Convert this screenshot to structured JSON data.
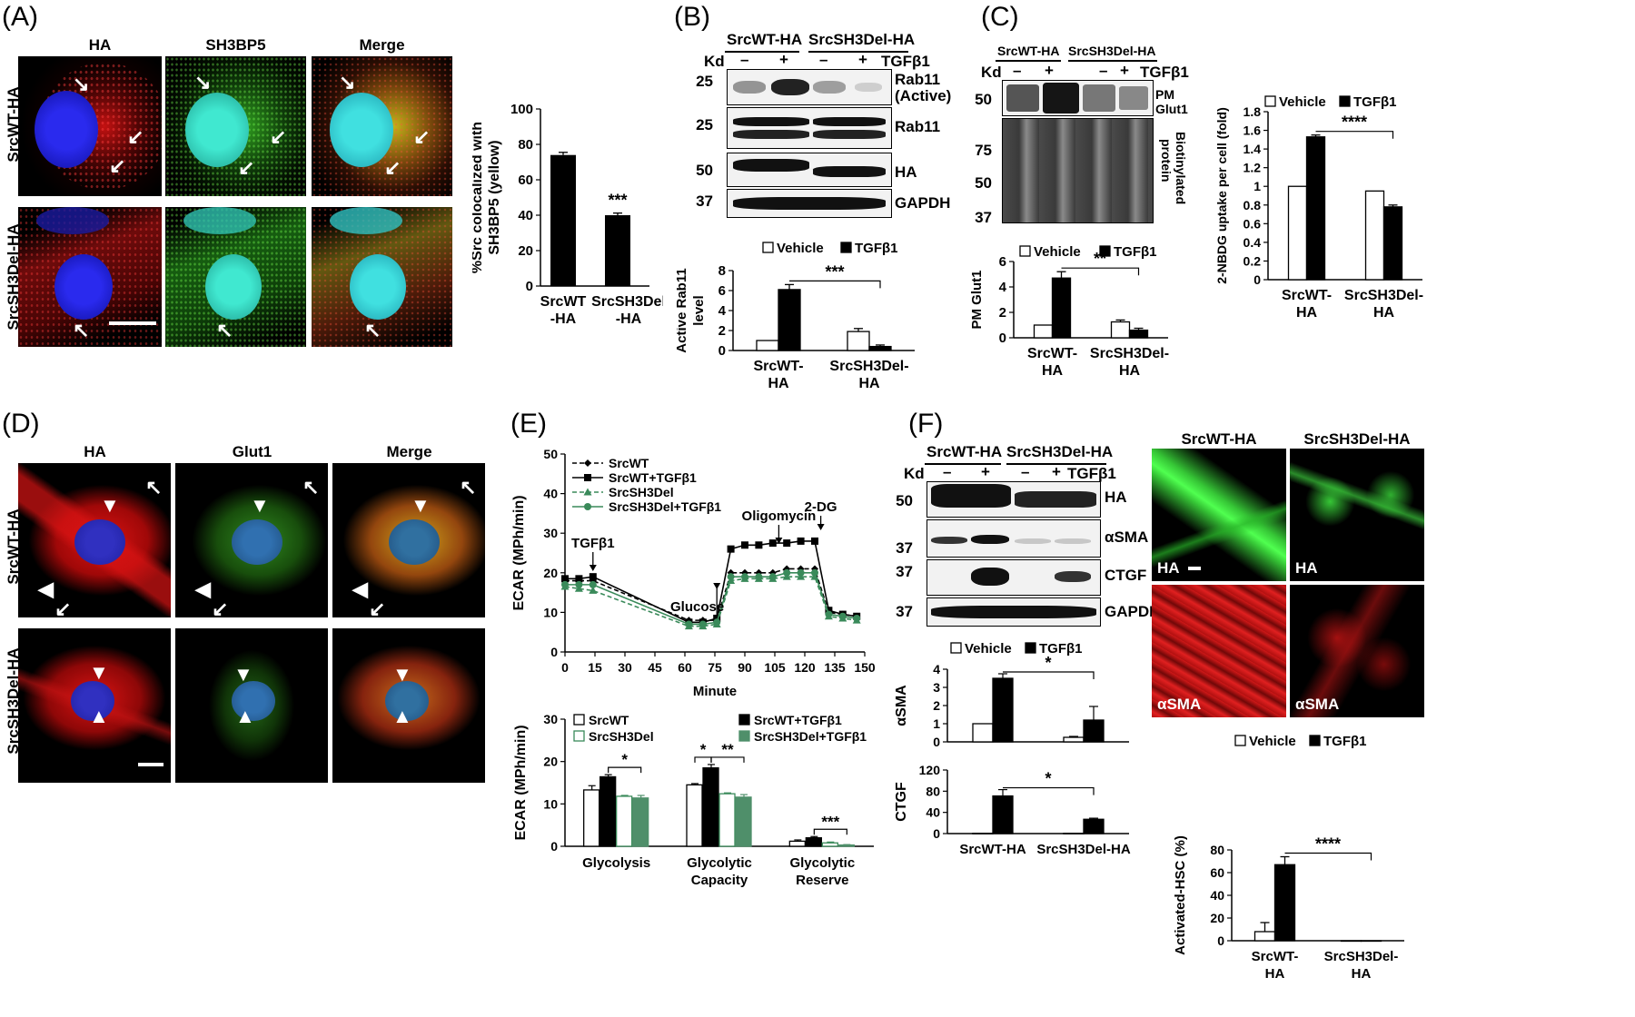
{
  "panels": {
    "A": {
      "label": "(A)",
      "col_headers": [
        "HA",
        "SH3BP5",
        "Merge"
      ],
      "row_labels": [
        "SrcWT-HA",
        "SrcSH3Del-HA"
      ]
    },
    "B": {
      "label": "(B)",
      "groups": [
        "SrcWT-HA",
        "SrcSH3Del-HA"
      ],
      "kd": "Kd",
      "signs": [
        "–",
        "+",
        "–",
        "+"
      ],
      "treatment": "TGFβ1",
      "blots": [
        {
          "name": "Rab11 (Active)",
          "name_line1": "Rab11",
          "name_line2": "(Active)",
          "kd": "25"
        },
        {
          "name": "Rab11",
          "kd": "25"
        },
        {
          "name": "HA",
          "kd": "50"
        },
        {
          "name": "GAPDH",
          "kd": "37"
        }
      ]
    },
    "C": {
      "label": "(C)",
      "groups": [
        "SrcWT-HA",
        "SrcSH3Del-HA"
      ],
      "kd": "Kd",
      "signs": [
        "–",
        "+",
        "–",
        "+"
      ],
      "treatment": "TGFβ1",
      "blot1_label_line1": "PM",
      "blot1_label_line2": "Glut1",
      "blot1_kd": "50",
      "blot2_kds": [
        "75",
        "50",
        "37"
      ],
      "blot2_label_line1": "Biotinylated",
      "blot2_label_line2": "protein"
    },
    "D": {
      "label": "(D)",
      "col_headers": [
        "HA",
        "Glut1",
        "Merge"
      ],
      "row_labels": [
        "SrcWT-HA",
        "SrcSH3Del-HA"
      ]
    },
    "E": {
      "label": "(E)"
    },
    "F": {
      "label": "(F)",
      "groups": [
        "SrcWT-HA",
        "SrcSH3Del-HA"
      ],
      "kd": "Kd",
      "signs": [
        "–",
        "+",
        "–",
        "+"
      ],
      "treatment": "TGFβ1",
      "blots": [
        {
          "name": "HA",
          "kd": "50"
        },
        {
          "name": "αSMA",
          "kd": "37"
        },
        {
          "name": "CTGF",
          "kd": "37"
        },
        {
          "name": "GAPDH",
          "kd": "37"
        }
      ],
      "img_headers": [
        "SrcWT-HA",
        "SrcSH3Del-HA"
      ],
      "img_tags": [
        "HA",
        "HA",
        "αSMA",
        "αSMA"
      ]
    }
  },
  "chart_data": [
    {
      "id": "A-bar",
      "type": "bar",
      "categories": [
        "SrcWT-HA",
        "SrcSH3Del-HA"
      ],
      "category_lines": [
        [
          "SrcWT",
          "-HA"
        ],
        [
          "SrcSH3Del",
          "-HA"
        ]
      ],
      "values": [
        74,
        40
      ],
      "errors": [
        1.5,
        1.2
      ],
      "ylabel_lines": [
        "%Src colocalized with",
        "SH3BP5 (yellow)"
      ],
      "ylim": [
        0,
        100
      ],
      "yticks": [
        0,
        20,
        40,
        60,
        80,
        100
      ],
      "annotations": [
        {
          "text": "***",
          "category": 1
        }
      ],
      "colors": [
        "#000000"
      ]
    },
    {
      "id": "B-bar",
      "type": "bar",
      "categories": [
        "SrcWT-HA",
        "SrcSH3Del-HA"
      ],
      "category_lines": [
        [
          "SrcWT-",
          "HA"
        ],
        [
          "SrcSH3Del-",
          "HA"
        ]
      ],
      "series": [
        {
          "name": "Vehicle",
          "values": [
            1.0,
            1.9
          ],
          "errors": [
            0,
            0.3
          ],
          "fill": "#ffffff"
        },
        {
          "name": "TGFβ1",
          "values": [
            6.1,
            0.4
          ],
          "errors": [
            0.5,
            0.15
          ],
          "fill": "#000000"
        }
      ],
      "ylabel_lines": [
        "Active Rab11",
        "level"
      ],
      "ylim": [
        0,
        8
      ],
      "yticks": [
        0,
        2,
        4,
        6,
        8
      ],
      "significance": [
        {
          "text": "***",
          "from_category": 0,
          "to_category": 1
        }
      ]
    },
    {
      "id": "C-bar",
      "type": "bar",
      "categories": [
        "SrcWT-HA",
        "SrcSH3Del-HA"
      ],
      "category_lines": [
        [
          "SrcWT-",
          "HA"
        ],
        [
          "SrcSH3Del-",
          "HA"
        ]
      ],
      "series": [
        {
          "name": "Vehicle",
          "values": [
            1.0,
            1.25
          ],
          "errors": [
            0,
            0.15
          ],
          "fill": "#ffffff"
        },
        {
          "name": "TGFβ1",
          "values": [
            4.7,
            0.6
          ],
          "errors": [
            0.5,
            0.15
          ],
          "fill": "#000000"
        }
      ],
      "ylabel_lines": [
        "PM Glut1"
      ],
      "ylim": [
        0,
        6
      ],
      "yticks": [
        0,
        2,
        4,
        6
      ],
      "significance": [
        {
          "text": "**",
          "from_category": 0,
          "to_category": 1
        }
      ]
    },
    {
      "id": "C2-bar",
      "type": "bar",
      "categories": [
        "SrcWT-HA",
        "SrcSH3Del-HA"
      ],
      "category_lines": [
        [
          "SrcWT-",
          "HA"
        ],
        [
          "SrcSH3Del-",
          "HA"
        ]
      ],
      "series": [
        {
          "name": "Vehicle",
          "values": [
            1.0,
            0.95
          ],
          "errors": [
            0,
            0
          ],
          "fill": "#ffffff"
        },
        {
          "name": "TGFβ1",
          "values": [
            1.53,
            0.78
          ],
          "errors": [
            0.02,
            0.02
          ],
          "fill": "#000000"
        }
      ],
      "ylabel_lines": [
        "2-NBDG uptake per cell (fold)"
      ],
      "ylim": [
        0,
        1.8
      ],
      "yticks": [
        0,
        0.2,
        0.4,
        0.6,
        0.8,
        1.0,
        1.2,
        1.4,
        1.6,
        1.8
      ],
      "ytick_labels": [
        "0",
        "0.2",
        "0.4",
        "0.6",
        "0.8",
        "1",
        "1.2",
        "1.4",
        "1.6",
        "1.8"
      ],
      "significance": [
        {
          "text": "****",
          "from_category": 0,
          "to_category": 1
        }
      ]
    },
    {
      "id": "E-line",
      "type": "line",
      "xlabel": "Minute",
      "ylabel": "ECAR (MPh/min)",
      "xlim": [
        0,
        150
      ],
      "ylim": [
        0,
        50
      ],
      "xticks": [
        0,
        15,
        30,
        45,
        60,
        75,
        90,
        105,
        120,
        135,
        150
      ],
      "yticks": [
        0,
        10,
        20,
        30,
        40,
        50
      ],
      "x": [
        0,
        7,
        14,
        62,
        69,
        76,
        83,
        90,
        97,
        104,
        111,
        118,
        125,
        132,
        139,
        146
      ],
      "series": [
        {
          "name": "SrcWT",
          "values": [
            18,
            18,
            18,
            8,
            8,
            8,
            20,
            20,
            20,
            20,
            21,
            21,
            21,
            10,
            9.5,
            9
          ],
          "color": "#000000",
          "dash": "5,3",
          "marker": "diamond"
        },
        {
          "name": "SrcWT+TGFβ1",
          "values": [
            18.5,
            18.5,
            19,
            7.5,
            7.5,
            8.5,
            26,
            27,
            27,
            27.5,
            27.5,
            28,
            28,
            10.5,
            9.5,
            9
          ],
          "color": "#000000",
          "dash": "",
          "marker": "square"
        },
        {
          "name": "SrcSH3Del",
          "values": [
            16.5,
            16,
            15.5,
            6.5,
            6.5,
            7,
            18,
            18.5,
            18.5,
            18.5,
            19,
            19,
            19,
            9,
            8.5,
            8
          ],
          "color": "#3a8a5a",
          "dash": "5,3",
          "marker": "triangle"
        },
        {
          "name": "SrcSH3Del+TGFβ1",
          "values": [
            17,
            17,
            17,
            7,
            7,
            7.5,
            19,
            19,
            19,
            19,
            20,
            20,
            20,
            9.5,
            9,
            8.5
          ],
          "color": "#3a8a5a",
          "dash": "",
          "marker": "circle"
        }
      ],
      "annotations": [
        {
          "text": "TGFβ1",
          "x": 14
        },
        {
          "text": "Glucose",
          "x": 76
        },
        {
          "text": "Oligomycin",
          "x": 107
        },
        {
          "text": "2-DG",
          "x": 128
        }
      ]
    },
    {
      "id": "E-bar",
      "type": "bar",
      "categories": [
        "Glycolysis",
        "Glycolytic Capacity",
        "Glycolytic Reserve"
      ],
      "category_lines": [
        [
          "Glycolysis"
        ],
        [
          "Glycolytic",
          "Capacity"
        ],
        [
          "Glycolytic",
          "Reserve"
        ]
      ],
      "series": [
        {
          "name": "SrcWT",
          "values": [
            13.3,
            14.5,
            1.2
          ],
          "errors": [
            1.0,
            0.3,
            0.3
          ],
          "fill": "#ffffff",
          "stroke": "#000000"
        },
        {
          "name": "SrcWT+TGFβ1",
          "values": [
            16.4,
            18.5,
            2.0
          ],
          "errors": [
            0.5,
            0.8,
            0.3
          ],
          "fill": "#000000",
          "stroke": "#000000"
        },
        {
          "name": "SrcSH3Del",
          "values": [
            11.8,
            12.4,
            0.8
          ],
          "errors": [
            0.2,
            0.2,
            0.2
          ],
          "fill": "#ffffff",
          "stroke": "#3a8a5a"
        },
        {
          "name": "SrcSH3Del+TGFβ1",
          "values": [
            11.4,
            11.6,
            0.3
          ],
          "errors": [
            0.6,
            0.6,
            0.1
          ],
          "fill": "#4f8f6a",
          "stroke": "#4f8f6a"
        }
      ],
      "ylabel": "ECAR (MPh/min)",
      "ylim": [
        0,
        30
      ],
      "yticks": [
        0,
        10,
        20,
        30
      ],
      "significance": [
        {
          "text": "*",
          "category": 0,
          "from_series": 1,
          "to_series": 3
        },
        {
          "text": "*",
          "category": 1,
          "from_series": 0,
          "to_series": 1
        },
        {
          "text": "**",
          "category": 1,
          "from_series": 1,
          "to_series": 3
        },
        {
          "text": "***",
          "category": 2,
          "from_series": 1,
          "to_series": 3
        }
      ]
    },
    {
      "id": "F-asma",
      "type": "bar",
      "categories": [
        "SrcWT-HA",
        "SrcSH3Del-HA"
      ],
      "series": [
        {
          "name": "Vehicle",
          "values": [
            1.0,
            0.25
          ],
          "errors": [
            0,
            0.05
          ],
          "fill": "#ffffff"
        },
        {
          "name": "TGFβ1",
          "values": [
            3.5,
            1.2
          ],
          "errors": [
            0.25,
            0.75
          ],
          "fill": "#000000"
        }
      ],
      "ylabel": "αSMA",
      "ylim": [
        0,
        4
      ],
      "yticks": [
        0,
        1,
        2,
        3,
        4
      ],
      "significance": [
        {
          "text": "*",
          "from_category": 0,
          "to_category": 1
        }
      ]
    },
    {
      "id": "F-ctgf",
      "type": "bar",
      "categories": [
        "SrcWT-HA",
        "SrcSH3Del-HA"
      ],
      "series": [
        {
          "name": "Vehicle",
          "values": [
            0.5,
            0.5
          ],
          "errors": [
            0,
            0
          ],
          "fill": "#ffffff"
        },
        {
          "name": "TGFβ1",
          "values": [
            71,
            27
          ],
          "errors": [
            12,
            2
          ],
          "fill": "#000000"
        }
      ],
      "ylabel": "CTGF",
      "ylim": [
        0,
        120
      ],
      "yticks": [
        0,
        40,
        80,
        120
      ],
      "significance": [
        {
          "text": "*",
          "from_category": 0,
          "to_category": 1
        }
      ]
    },
    {
      "id": "F-hsc",
      "type": "bar",
      "categories": [
        "SrcWT-HA",
        "SrcSH3Del-HA"
      ],
      "category_lines": [
        [
          "SrcWT-",
          "HA"
        ],
        [
          "SrcSH3Del-",
          "HA"
        ]
      ],
      "series": [
        {
          "name": "Vehicle",
          "values": [
            8,
            0
          ],
          "errors": [
            8,
            0
          ],
          "fill": "#ffffff"
        },
        {
          "name": "TGFβ1",
          "values": [
            67,
            0
          ],
          "errors": [
            7,
            0
          ],
          "fill": "#000000"
        }
      ],
      "ylabel": "Activated-HSC (%)",
      "ylim": [
        0,
        80
      ],
      "yticks": [
        0,
        20,
        40,
        60,
        80
      ],
      "significance": [
        {
          "text": "****",
          "from_category": 0,
          "to_category": 1
        }
      ]
    }
  ]
}
